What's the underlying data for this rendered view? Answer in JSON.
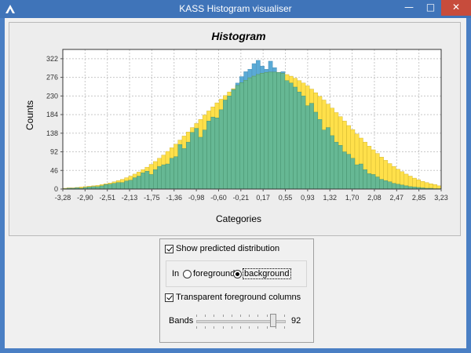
{
  "window": {
    "title": "KASS Histogram visualiser",
    "minimize_glyph": "—",
    "maximize_glyph": "□",
    "close_glyph": "✕",
    "close_color": "#c74c3c"
  },
  "chart_data": {
    "type": "bar",
    "title": "Histogram",
    "xlabel": "Categories",
    "ylabel": "Counts",
    "ylim": [
      0,
      345
    ],
    "xlim": [
      -3.28,
      3.23
    ],
    "x_ticks": [
      "-3,28",
      "-2,90",
      "-2,51",
      "-2,13",
      "-1,75",
      "-1,36",
      "-0,98",
      "-0,60",
      "-0,21",
      "0,17",
      "0,55",
      "0,93",
      "1,32",
      "1,70",
      "2,08",
      "2,47",
      "2,85",
      "3,23"
    ],
    "y_ticks": [
      "0",
      "46",
      "92",
      "138",
      "184",
      "230",
      "276",
      "322"
    ],
    "grid": true,
    "series": [
      {
        "role": "observed",
        "color": "#5aaad6",
        "values": [
          1,
          2,
          2,
          3,
          2,
          4,
          5,
          6,
          6,
          8,
          11,
          12,
          14,
          16,
          16,
          20,
          22,
          28,
          32,
          40,
          44,
          36,
          48,
          56,
          60,
          62,
          76,
          80,
          110,
          100,
          116,
          140,
          150,
          128,
          146,
          168,
          178,
          176,
          196,
          220,
          230,
          246,
          262,
          278,
          290,
          296,
          310,
          318,
          304,
          296,
          316,
          300,
          288,
          290,
          268,
          262,
          252,
          240,
          230,
          206,
          212,
          190,
          172,
          146,
          152,
          132,
          116,
          108,
          92,
          86,
          76,
          60,
          62,
          48,
          38,
          36,
          30,
          24,
          21,
          18,
          14,
          12,
          10,
          8,
          6,
          5,
          4,
          3,
          2,
          2,
          1,
          1
        ]
      },
      {
        "role": "predicted",
        "color": "#ffe04a",
        "values": [
          2,
          3,
          3,
          4,
          5,
          6,
          7,
          8,
          9,
          11,
          13,
          15,
          18,
          21,
          24,
          28,
          32,
          37,
          42,
          48,
          54,
          61,
          68,
          76,
          84,
          93,
          102,
          111,
          121,
          131,
          141,
          152,
          162,
          172,
          183,
          193,
          203,
          213,
          222,
          231,
          240,
          248,
          256,
          263,
          269,
          275,
          279,
          283,
          286,
          288,
          289,
          289,
          288,
          286,
          283,
          279,
          274,
          268,
          262,
          255,
          247,
          238,
          229,
          220,
          210,
          200,
          189,
          179,
          168,
          157,
          147,
          136,
          126,
          116,
          106,
          97,
          88,
          79,
          71,
          63,
          56,
          49,
          43,
          37,
          32,
          27,
          23,
          19,
          16,
          13,
          11,
          8
        ]
      }
    ],
    "overlap_color": "#66b894",
    "legend": "none"
  },
  "controls": {
    "show_predicted_label": "Show predicted distribution",
    "show_predicted_checked": true,
    "in_label": "In",
    "foreground_label": "foreground",
    "background_label": "background",
    "selected_position": "background",
    "transparent_label": "Transparent foreground columns",
    "transparent_checked": true,
    "bands_label": "Bands",
    "bands_value": "92",
    "bands_fraction": 0.92
  }
}
